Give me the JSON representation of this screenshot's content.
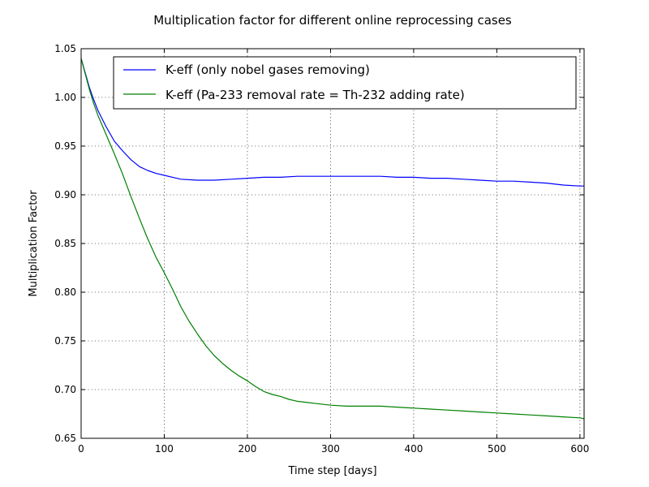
{
  "chart_data": {
    "type": "line",
    "title": "Multiplication factor for different online reprocessing cases",
    "xlabel": "Time step [days]",
    "ylabel": "Multiplication Factor",
    "xlim": [
      0,
      605
    ],
    "ylim": [
      0.65,
      1.05
    ],
    "xticks": [
      0,
      100,
      200,
      300,
      400,
      500,
      600
    ],
    "yticks": [
      0.65,
      0.7,
      0.75,
      0.8,
      0.85,
      0.9,
      0.95,
      1.0,
      1.05
    ],
    "grid": true,
    "legend_position": "top-right",
    "series": [
      {
        "name": "K-eff (only nobel gases removing)",
        "color": "#0000ff",
        "x": [
          0,
          5,
          10,
          15,
          20,
          30,
          40,
          50,
          60,
          70,
          80,
          90,
          100,
          110,
          120,
          140,
          160,
          180,
          200,
          220,
          240,
          260,
          280,
          300,
          320,
          340,
          360,
          380,
          400,
          420,
          440,
          460,
          480,
          500,
          520,
          540,
          560,
          580,
          600,
          605
        ],
        "y": [
          1.04,
          1.025,
          1.01,
          0.998,
          0.987,
          0.97,
          0.955,
          0.945,
          0.936,
          0.929,
          0.925,
          0.922,
          0.92,
          0.918,
          0.916,
          0.915,
          0.915,
          0.916,
          0.917,
          0.918,
          0.918,
          0.919,
          0.919,
          0.919,
          0.919,
          0.919,
          0.919,
          0.918,
          0.918,
          0.917,
          0.917,
          0.916,
          0.915,
          0.914,
          0.914,
          0.913,
          0.912,
          0.91,
          0.909,
          0.909
        ]
      },
      {
        "name": "K-eff (Pa-233 removal rate = Th-232 adding rate)",
        "color": "#008000",
        "x": [
          0,
          5,
          10,
          15,
          20,
          30,
          40,
          50,
          60,
          70,
          80,
          90,
          100,
          110,
          120,
          130,
          140,
          150,
          160,
          170,
          180,
          190,
          200,
          210,
          220,
          230,
          240,
          250,
          260,
          280,
          300,
          320,
          340,
          360,
          380,
          400,
          420,
          440,
          460,
          480,
          500,
          520,
          540,
          560,
          580,
          600,
          605
        ],
        "y": [
          1.04,
          1.024,
          1.008,
          0.994,
          0.982,
          0.962,
          0.942,
          0.921,
          0.898,
          0.876,
          0.855,
          0.836,
          0.82,
          0.803,
          0.785,
          0.77,
          0.757,
          0.745,
          0.735,
          0.727,
          0.72,
          0.714,
          0.709,
          0.703,
          0.698,
          0.695,
          0.693,
          0.69,
          0.688,
          0.686,
          0.684,
          0.683,
          0.683,
          0.683,
          0.682,
          0.681,
          0.68,
          0.679,
          0.678,
          0.677,
          0.676,
          0.675,
          0.674,
          0.673,
          0.672,
          0.671,
          0.67
        ]
      }
    ]
  }
}
